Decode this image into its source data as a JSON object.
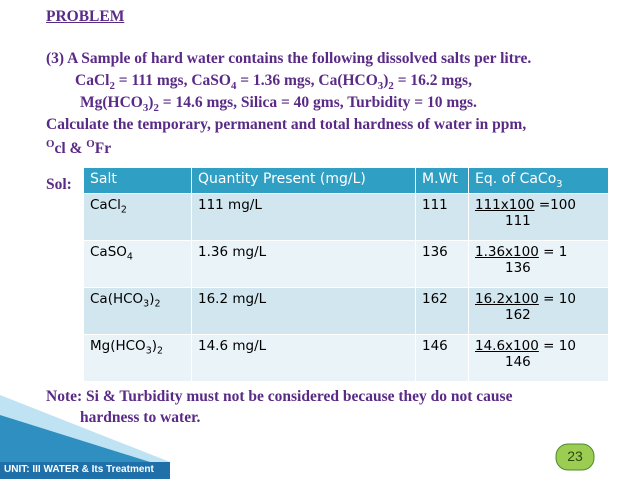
{
  "header": {
    "title": "PROBLEM"
  },
  "problem": {
    "lines": [
      [
        "(3) A Sample of hard water contains the following dissolved salts per litre."
      ],
      [
        "CaCl",
        {
          "sub": "2"
        },
        " = 111 mgs, CaSO",
        {
          "sub": "4"
        },
        " = 1.36 mgs, Ca(HCO",
        {
          "sub": "3"
        },
        ")",
        {
          "sub": "2"
        },
        " = 16.2 mgs,"
      ],
      [
        "Mg(HCO",
        {
          "sub": "3"
        },
        ")",
        {
          "sub": "2"
        },
        " = 14.6 mgs, Silica = 40 gms, Turbidity = 10 mgs."
      ],
      [
        "Calculate the temporary, permanent and total hardness of water in ppm,"
      ],
      [
        {
          "sup": "O"
        },
        "cl & ",
        {
          "sup": "O"
        },
        "Fr"
      ]
    ]
  },
  "solution_label": "Sol:",
  "table": {
    "header": [
      [
        "Salt"
      ],
      [
        "Quantity Present (mg/L)"
      ],
      [
        "M.Wt"
      ],
      [
        "Eq. of CaCo",
        {
          "sub": "3"
        }
      ]
    ],
    "rows": [
      {
        "salt": [
          "CaCl",
          {
            "sub": "2"
          }
        ],
        "quantity": "111 mg/L",
        "mwt": "111",
        "eq": {
          "numerator": "111x100",
          "result": "=100",
          "denominator": "111"
        }
      },
      {
        "salt": [
          "CaSO",
          {
            "sub": "4"
          }
        ],
        "quantity": "1.36 mg/L",
        "mwt": "136",
        "eq": {
          "numerator": "1.36x100",
          "result": "= 1",
          "denominator": "136"
        }
      },
      {
        "salt": [
          "Ca(HCO",
          {
            "sub": "3"
          },
          ")",
          {
            "sub": "2"
          }
        ],
        "quantity": "16.2 mg/L",
        "mwt": "162",
        "eq": {
          "numerator": "16.2x100",
          "result": "= 10",
          "denominator": "162"
        }
      },
      {
        "salt": [
          "Mg(HCO",
          {
            "sub": "3"
          },
          ")",
          {
            "sub": "2"
          }
        ],
        "quantity": "14.6 mg/L",
        "mwt": "146",
        "eq": {
          "numerator": "14.6x100",
          "result": "= 10",
          "denominator": "146"
        }
      }
    ]
  },
  "note": {
    "lines": [
      "Note: Si & Turbidity must not be considered because they do not cause",
      "hardness to water."
    ]
  },
  "page_number": "23",
  "footer": "UNIT: III WATER & Its Treatment"
}
